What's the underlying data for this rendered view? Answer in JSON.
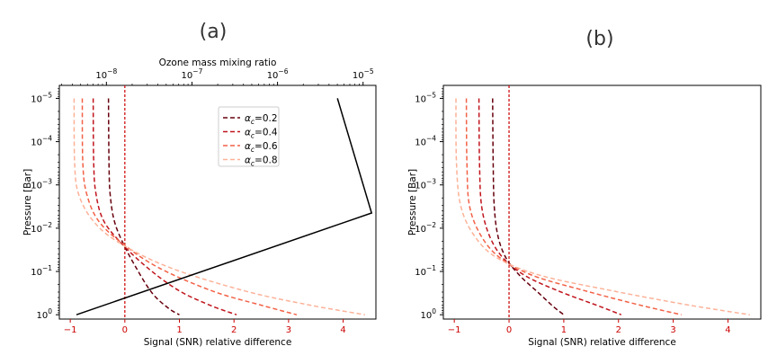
{
  "chart_data": [
    {
      "type": "line",
      "panel_label": "(a)",
      "xlabel": "Signal (SNR) relative difference",
      "ylabel": "Pressure [Bar]",
      "top_xlabel": "Ozone mass mixing ratio",
      "xlim": [
        -1.2,
        4.6
      ],
      "ylim_log10": [
        0.1,
        -5.3
      ],
      "y_scale": "log",
      "y_inverted": true,
      "x_ticks": [
        "−1",
        "0",
        "1",
        "2",
        "3",
        "4"
      ],
      "x_tick_values": [
        -1,
        0,
        1,
        2,
        3,
        4
      ],
      "x_tick_color": "#cc0000",
      "y_ticks": [
        {
          "base": "10",
          "exp": "0",
          "log": 0
        },
        {
          "base": "10",
          "exp": "−1",
          "log": -1
        },
        {
          "base": "10",
          "exp": "−2",
          "log": -2
        },
        {
          "base": "10",
          "exp": "−3",
          "log": -3
        },
        {
          "base": "10",
          "exp": "−4",
          "log": -4
        },
        {
          "base": "10",
          "exp": "−5",
          "log": -5
        }
      ],
      "top_x_ticks": [
        {
          "base": "10",
          "exp": "−8",
          "log": -8
        },
        {
          "base": "10",
          "exp": "−7",
          "log": -7
        },
        {
          "base": "10",
          "exp": "−6",
          "log": -6
        },
        {
          "base": "10",
          "exp": "−5",
          "log": -5
        }
      ],
      "top_xlim_log10": [
        -8.55,
        -4.85
      ],
      "zero_line": {
        "x": 0,
        "color": "#cc0000",
        "style": "dashed"
      },
      "legend": {
        "placement": "upper-center",
        "symbol": "α",
        "subscript": "c"
      },
      "series": [
        {
          "name": "=0.2",
          "color": "#67000d",
          "style": "dashed",
          "points": [
            [
              -0.3,
              -5
            ],
            [
              -0.29,
              -3.5
            ],
            [
              -0.27,
              -2.8
            ],
            [
              -0.2,
              -2.2
            ],
            [
              -0.05,
              -1.7
            ],
            [
              0.2,
              -1.1
            ],
            [
              0.5,
              -0.5
            ],
            [
              0.8,
              -0.15
            ],
            [
              1.0,
              0
            ]
          ]
        },
        {
          "name": "=0.4",
          "color": "#c0141c",
          "style": "dashed",
          "points": [
            [
              -0.58,
              -5
            ],
            [
              -0.57,
              -3.5
            ],
            [
              -0.53,
              -2.8
            ],
            [
              -0.4,
              -2.2
            ],
            [
              -0.1,
              -1.7
            ],
            [
              0.4,
              -1.1
            ],
            [
              1.0,
              -0.55
            ],
            [
              1.6,
              -0.2
            ],
            [
              2.05,
              0
            ]
          ]
        },
        {
          "name": "=0.6",
          "color": "#f26146",
          "style": "dashed",
          "points": [
            [
              -0.78,
              -5
            ],
            [
              -0.77,
              -3.5
            ],
            [
              -0.7,
              -2.8
            ],
            [
              -0.5,
              -2.2
            ],
            [
              -0.1,
              -1.7
            ],
            [
              0.6,
              -1.1
            ],
            [
              1.6,
              -0.55
            ],
            [
              2.5,
              -0.22
            ],
            [
              3.15,
              0
            ]
          ]
        },
        {
          "name": "=0.8",
          "color": "#fcb298",
          "style": "dashed",
          "points": [
            [
              -0.93,
              -5
            ],
            [
              -0.92,
              -3.5
            ],
            [
              -0.85,
              -2.8
            ],
            [
              -0.6,
              -2.2
            ],
            [
              -0.15,
              -1.7
            ],
            [
              0.8,
              -1.1
            ],
            [
              2.2,
              -0.55
            ],
            [
              3.4,
              -0.22
            ],
            [
              4.4,
              0
            ]
          ]
        }
      ],
      "ozone_profile": {
        "color": "#000000",
        "style": "solid",
        "points_log10": [
          [
            -8.35,
            0
          ],
          [
            -4.9,
            -2.35
          ],
          [
            -5.3,
            -5
          ]
        ]
      }
    },
    {
      "type": "line",
      "panel_label": "(b)",
      "xlabel": "Signal (SNR) relative difference",
      "ylabel": "Pressure [Bar]",
      "xlim": [
        -1.2,
        4.6
      ],
      "ylim_log10": [
        0.1,
        -5.3
      ],
      "y_scale": "log",
      "y_inverted": true,
      "x_ticks": [
        "−1",
        "0",
        "1",
        "2",
        "3",
        "4"
      ],
      "x_tick_values": [
        -1,
        0,
        1,
        2,
        3,
        4
      ],
      "x_tick_color": "#cc0000",
      "y_ticks": [
        {
          "base": "10",
          "exp": "0",
          "log": 0
        },
        {
          "base": "10",
          "exp": "−1",
          "log": -1
        },
        {
          "base": "10",
          "exp": "−2",
          "log": -2
        },
        {
          "base": "10",
          "exp": "−3",
          "log": -3
        },
        {
          "base": "10",
          "exp": "−4",
          "log": -4
        },
        {
          "base": "10",
          "exp": "−5",
          "log": -5
        }
      ],
      "zero_line": {
        "x": 0,
        "color": "#cc0000",
        "style": "dashed"
      },
      "series": [
        {
          "name": "",
          "color": "#67000d",
          "style": "dashed",
          "points": [
            [
              -0.3,
              -5
            ],
            [
              -0.29,
              -3.5
            ],
            [
              -0.27,
              -2.5
            ],
            [
              -0.2,
              -1.8
            ],
            [
              -0.05,
              -1.3
            ],
            [
              0.2,
              -0.9
            ],
            [
              0.5,
              -0.55
            ],
            [
              0.8,
              -0.2
            ],
            [
              1.0,
              0
            ]
          ]
        },
        {
          "name": "",
          "color": "#c0141c",
          "style": "dashed",
          "points": [
            [
              -0.55,
              -5
            ],
            [
              -0.54,
              -3.5
            ],
            [
              -0.5,
              -2.5
            ],
            [
              -0.35,
              -1.8
            ],
            [
              -0.1,
              -1.3
            ],
            [
              0.3,
              -0.9
            ],
            [
              0.9,
              -0.55
            ],
            [
              1.6,
              -0.22
            ],
            [
              2.05,
              0
            ]
          ]
        },
        {
          "name": "",
          "color": "#f26146",
          "style": "dashed",
          "points": [
            [
              -0.78,
              -5
            ],
            [
              -0.77,
              -3.5
            ],
            [
              -0.72,
              -2.5
            ],
            [
              -0.5,
              -1.8
            ],
            [
              -0.15,
              -1.3
            ],
            [
              0.45,
              -0.9
            ],
            [
              1.4,
              -0.55
            ],
            [
              2.4,
              -0.22
            ],
            [
              3.15,
              0
            ]
          ]
        },
        {
          "name": "",
          "color": "#fcb298",
          "style": "dashed",
          "points": [
            [
              -0.97,
              -5
            ],
            [
              -0.96,
              -3.5
            ],
            [
              -0.88,
              -2.5
            ],
            [
              -0.62,
              -1.8
            ],
            [
              -0.2,
              -1.3
            ],
            [
              0.6,
              -0.9
            ],
            [
              1.9,
              -0.55
            ],
            [
              3.3,
              -0.22
            ],
            [
              4.4,
              0
            ]
          ]
        }
      ]
    }
  ]
}
